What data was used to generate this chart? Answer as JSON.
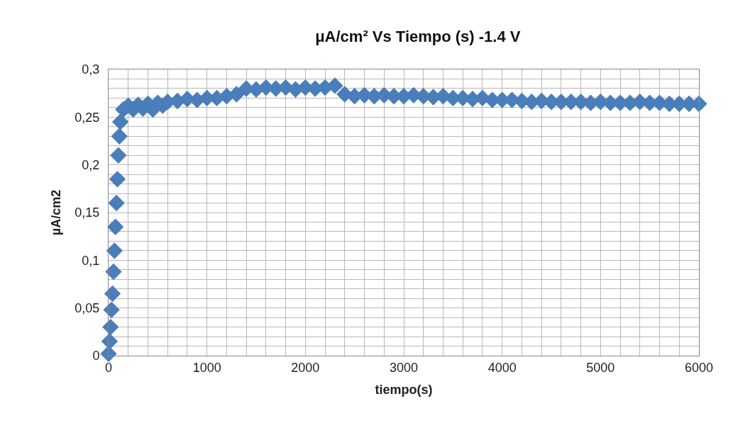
{
  "chart_data": {
    "type": "scatter",
    "title": "μA/cm² Vs Tiempo (s) -1.4 V",
    "xlabel": "tiempo(s)",
    "ylabel": "µA/cm2",
    "x": [
      0,
      10,
      20,
      30,
      40,
      50,
      60,
      70,
      80,
      90,
      100,
      110,
      120,
      150,
      200,
      250,
      300,
      350,
      400,
      450,
      500,
      550,
      600,
      700,
      800,
      900,
      1000,
      1100,
      1200,
      1300,
      1400,
      1500,
      1600,
      1700,
      1800,
      1900,
      2000,
      2100,
      2200,
      2300,
      2400,
      2500,
      2600,
      2700,
      2800,
      2900,
      3000,
      3100,
      3200,
      3300,
      3400,
      3500,
      3600,
      3700,
      3800,
      3900,
      4000,
      4100,
      4200,
      4300,
      4400,
      4500,
      4600,
      4700,
      4800,
      4900,
      5000,
      5100,
      5200,
      5300,
      5400,
      5500,
      5600,
      5700,
      5800,
      5900,
      6000
    ],
    "series": [
      {
        "color": "#4a7ebb",
        "values": [
          0.002,
          0.015,
          0.03,
          0.048,
          0.065,
          0.088,
          0.11,
          0.135,
          0.16,
          0.185,
          0.21,
          0.23,
          0.245,
          0.258,
          0.262,
          0.258,
          0.263,
          0.259,
          0.264,
          0.258,
          0.265,
          0.262,
          0.266,
          0.267,
          0.269,
          0.268,
          0.27,
          0.27,
          0.272,
          0.274,
          0.28,
          0.279,
          0.281,
          0.28,
          0.281,
          0.279,
          0.281,
          0.28,
          0.281,
          0.283,
          0.274,
          0.272,
          0.273,
          0.272,
          0.273,
          0.272,
          0.272,
          0.273,
          0.272,
          0.271,
          0.272,
          0.27,
          0.27,
          0.269,
          0.27,
          0.268,
          0.268,
          0.268,
          0.267,
          0.266,
          0.267,
          0.266,
          0.266,
          0.266,
          0.266,
          0.265,
          0.266,
          0.265,
          0.265,
          0.265,
          0.266,
          0.265,
          0.265,
          0.264,
          0.264,
          0.264,
          0.264
        ]
      }
    ],
    "marker": "diamond",
    "grid": true,
    "xlim": [
      0,
      6000
    ],
    "xticks": [
      0,
      {
        "value": 200,
        "label": null
      },
      {
        "value": 400,
        "label": null
      },
      {
        "value": 600,
        "label": null
      },
      {
        "value": 800,
        "label": null
      },
      1000,
      {
        "value": 1200,
        "label": null
      },
      {
        "value": 1400,
        "label": null
      },
      {
        "value": 1600,
        "label": null
      },
      {
        "value": 1800,
        "label": null
      },
      2000,
      {
        "value": 2200,
        "label": null
      },
      {
        "value": 2400,
        "label": null
      },
      {
        "value": 2600,
        "label": null
      },
      {
        "value": 2800,
        "label": null
      },
      3000,
      {
        "value": 3200,
        "label": null
      },
      {
        "value": 3400,
        "label": null
      },
      {
        "value": 3600,
        "label": null
      },
      {
        "value": 3800,
        "label": null
      },
      4000,
      {
        "value": 4200,
        "label": null
      },
      {
        "value": 4400,
        "label": null
      },
      {
        "value": 4600,
        "label": null
      },
      {
        "value": 4800,
        "label": null
      },
      5000,
      {
        "value": 5200,
        "label": null
      },
      {
        "value": 5400,
        "label": null
      },
      {
        "value": 5600,
        "label": null
      },
      {
        "value": 5800,
        "label": null
      },
      6000
    ],
    "ylim": [
      0,
      0.3
    ],
    "yticks": [
      0,
      {
        "value": 0.01,
        "label": null
      },
      {
        "value": 0.02,
        "label": null
      },
      {
        "value": 0.03,
        "label": null
      },
      {
        "value": 0.04,
        "label": null
      },
      {
        "value": 0.05,
        "label": "0,05"
      },
      {
        "value": 0.06,
        "label": null
      },
      {
        "value": 0.07,
        "label": null
      },
      {
        "value": 0.08,
        "label": null
      },
      {
        "value": 0.09,
        "label": null
      },
      {
        "value": 0.1,
        "label": "0,1"
      },
      {
        "value": 0.11,
        "label": null
      },
      {
        "value": 0.12,
        "label": null
      },
      {
        "value": 0.13,
        "label": null
      },
      {
        "value": 0.14,
        "label": null
      },
      {
        "value": 0.15,
        "label": "0,15"
      },
      {
        "value": 0.16,
        "label": null
      },
      {
        "value": 0.17,
        "label": null
      },
      {
        "value": 0.18,
        "label": null
      },
      {
        "value": 0.19,
        "label": null
      },
      {
        "value": 0.2,
        "label": "0,2"
      },
      {
        "value": 0.21,
        "label": null
      },
      {
        "value": 0.22,
        "label": null
      },
      {
        "value": 0.23,
        "label": null
      },
      {
        "value": 0.24,
        "label": null
      },
      {
        "value": 0.25,
        "label": "0,25"
      },
      {
        "value": 0.26,
        "label": null
      },
      {
        "value": 0.27,
        "label": null
      },
      {
        "value": 0.28,
        "label": null
      },
      {
        "value": 0.29,
        "label": null
      },
      {
        "value": 0.3,
        "label": "0,3"
      }
    ]
  }
}
